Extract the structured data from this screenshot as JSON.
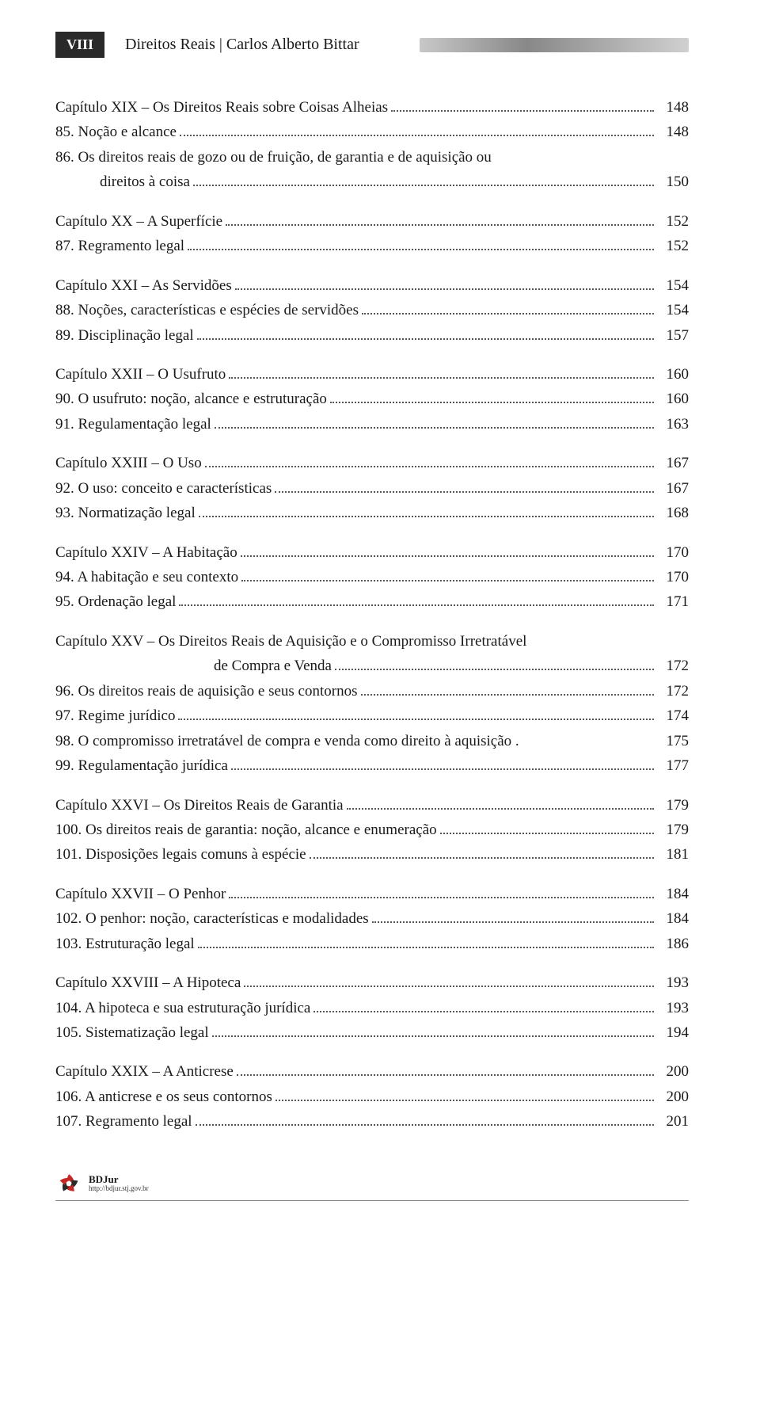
{
  "header": {
    "page_roman": "VIII",
    "title": "Direitos Reais | Carlos Alberto Bittar"
  },
  "toc": [
    {
      "type": "line",
      "label": "Capítulo XIX – Os Direitos Reais sobre Coisas Alheias",
      "page": "148"
    },
    {
      "type": "line",
      "label": "85. Noção e alcance",
      "page": "148"
    },
    {
      "type": "plain",
      "label": "86. Os direitos reais de gozo ou de fruição, de garantia e de aquisição ou"
    },
    {
      "type": "line",
      "indent": true,
      "label": "direitos à coisa",
      "page": "150"
    },
    {
      "type": "gap"
    },
    {
      "type": "line",
      "label": "Capítulo XX – A Superfície",
      "page": "152"
    },
    {
      "type": "line",
      "label": "87. Regramento legal",
      "page": "152"
    },
    {
      "type": "gap"
    },
    {
      "type": "line",
      "label": "Capítulo XXI – As Servidões",
      "page": "154"
    },
    {
      "type": "line",
      "label": "88. Noções, características e espécies de servidões",
      "page": "154"
    },
    {
      "type": "line",
      "label": "89. Disciplinação legal",
      "page": "157"
    },
    {
      "type": "gap"
    },
    {
      "type": "line",
      "label": "Capítulo XXII – O Usufruto",
      "page": "160"
    },
    {
      "type": "line",
      "label": "90. O usufruto: noção, alcance e estruturação",
      "page": "160"
    },
    {
      "type": "line",
      "label": "91. Regulamentação legal",
      "page": "163"
    },
    {
      "type": "gap"
    },
    {
      "type": "line",
      "label": "Capítulo XXIII – O Uso",
      "page": "167"
    },
    {
      "type": "line",
      "label": "92. O uso: conceito e características",
      "page": "167"
    },
    {
      "type": "line",
      "label": "93. Normatização legal",
      "page": "168"
    },
    {
      "type": "gap"
    },
    {
      "type": "line",
      "label": "Capítulo XXIV – A Habitação",
      "page": "170"
    },
    {
      "type": "line",
      "label": "94. A habitação e seu contexto",
      "page": "170"
    },
    {
      "type": "line",
      "label": "95. Ordenação legal",
      "page": "171"
    },
    {
      "type": "gap"
    },
    {
      "type": "plain",
      "label": "Capítulo XXV – Os Direitos Reais de Aquisição e o Compromisso Irretratável"
    },
    {
      "type": "line",
      "indent_center": true,
      "label": "de Compra e Venda",
      "page": "172"
    },
    {
      "type": "line",
      "label": "96. Os direitos reais de aquisição e seus contornos",
      "page": "172"
    },
    {
      "type": "line",
      "label": "97. Regime jurídico",
      "page": "174"
    },
    {
      "type": "line",
      "label": "98. O compromisso irretratável de compra e venda como direito à aquisição .",
      "page": "175",
      "no_dots": true
    },
    {
      "type": "line",
      "label": "99. Regulamentação jurídica",
      "page": "177"
    },
    {
      "type": "gap"
    },
    {
      "type": "line",
      "label": "Capítulo XXVI – Os Direitos Reais de Garantia",
      "page": "179"
    },
    {
      "type": "line",
      "label": "100. Os direitos reais de garantia: noção, alcance e enumeração",
      "page": "179"
    },
    {
      "type": "line",
      "label": "101. Disposições legais comuns à espécie",
      "page": "181"
    },
    {
      "type": "gap"
    },
    {
      "type": "line",
      "label": "Capítulo XXVII – O Penhor",
      "page": "184"
    },
    {
      "type": "line",
      "label": "102. O penhor: noção, características e modalidades",
      "page": "184"
    },
    {
      "type": "line",
      "label": "103. Estruturação legal",
      "page": "186"
    },
    {
      "type": "gap"
    },
    {
      "type": "line",
      "label": "Capítulo XXVIII – A Hipoteca",
      "page": "193"
    },
    {
      "type": "line",
      "label": "104. A hipoteca e sua estruturação jurídica",
      "page": "193"
    },
    {
      "type": "line",
      "label": "105. Sistematização legal",
      "page": "194"
    },
    {
      "type": "gap"
    },
    {
      "type": "line",
      "label": "Capítulo XXIX – A Anticrese",
      "page": "200"
    },
    {
      "type": "line",
      "label": "106. A anticrese e os seus contornos",
      "page": "200"
    },
    {
      "type": "line",
      "label": "107. Regramento legal",
      "page": "201"
    }
  ],
  "footer": {
    "brand": "BDJur",
    "url": "http://bdjur.stj.gov.br"
  },
  "style": {
    "text_color": "#1a1a1a",
    "background_color": "#ffffff",
    "dot_color": "#555555",
    "page_num_box_bg": "#2a2a2a",
    "page_num_box_fg": "#ffffff",
    "gradient_from": "#c8c8c8",
    "gradient_mid": "#888888",
    "gradient_to": "#d0d0d0",
    "body_font_size": 19,
    "header_font_size": 20,
    "logo_colors": [
      "#c62828",
      "#2a2a2a"
    ]
  }
}
